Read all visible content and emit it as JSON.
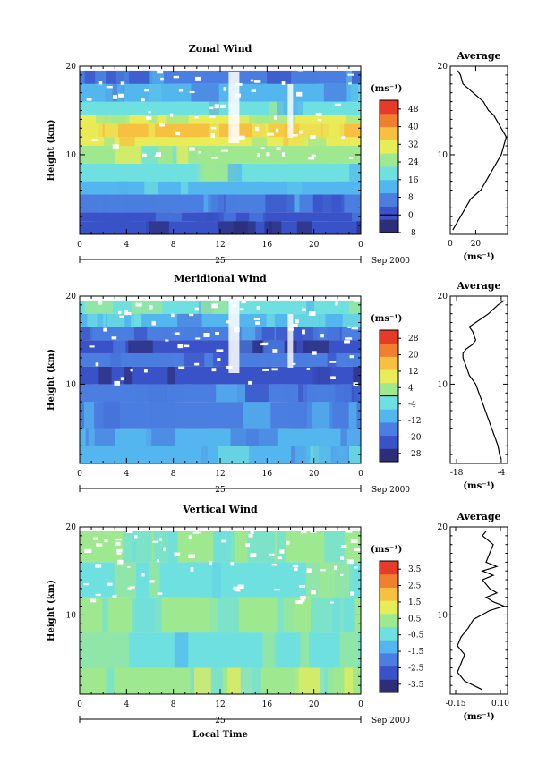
{
  "figure": {
    "date_label": "Sep 2000",
    "day_label": "25",
    "colors": {
      "white_gap": "#ffffff",
      "contour": "#000000"
    }
  },
  "chart_data": [
    {
      "type": "heatmap",
      "title": "Zonal Wind",
      "ylabel": "Height (km)",
      "xlabel": "",
      "x_ticks": [
        "0",
        "4",
        "8",
        "12",
        "16",
        "20",
        "0"
      ],
      "y_ticks": [
        "20",
        "10"
      ],
      "xlim": [
        0,
        24
      ],
      "ylim": [
        1,
        20
      ],
      "unit": "(ms⁻¹)",
      "colorbar": {
        "labels": [
          "48",
          "40",
          "32",
          "24",
          "16",
          "8",
          "0",
          "-8"
        ],
        "min": -8,
        "max": 52,
        "colors": [
          "#2e2e78",
          "#3a52c8",
          "#4a7ee0",
          "#54b6ee",
          "#6ee0e0",
          "#9ee890",
          "#e8ec58",
          "#f8c040",
          "#f08030",
          "#e83a28"
        ]
      },
      "bands": [
        {
          "y": [
            1,
            2.5
          ],
          "value": -2
        },
        {
          "y": [
            2.5,
            3.5
          ],
          "value": 2
        },
        {
          "y": [
            3.5,
            5.5
          ],
          "value": 6
        },
        {
          "y": [
            5.5,
            7
          ],
          "value": 14
        },
        {
          "y": [
            7,
            9
          ],
          "value": 20
        },
        {
          "y": [
            9,
            11
          ],
          "value": 26
        },
        {
          "y": [
            11,
            12
          ],
          "value": 30
        },
        {
          "y": [
            12,
            13.5
          ],
          "value": 34
        },
        {
          "y": [
            13.5,
            14.5
          ],
          "value": 28
        },
        {
          "y": [
            14.5,
            16
          ],
          "value": 20
        },
        {
          "y": [
            16,
            18
          ],
          "value": 12
        },
        {
          "y": [
            18,
            19.5
          ],
          "value": 6
        }
      ],
      "average_profile": {
        "title": "Average",
        "x_ticks": [
          "0",
          "20"
        ],
        "xlim": [
          0,
          45
        ],
        "x": [
          2,
          4,
          8,
          12,
          16,
          20,
          24,
          28,
          32,
          36,
          40,
          42,
          44,
          42,
          40,
          36,
          34,
          30,
          26,
          22,
          18,
          14,
          10,
          8,
          6
        ],
        "y": [
          1.5,
          2,
          3,
          4,
          5,
          5.5,
          6,
          7,
          8,
          9,
          10,
          11,
          12,
          12.5,
          13,
          14,
          14.5,
          15,
          16,
          16.5,
          17,
          17.5,
          18,
          19,
          19.5
        ]
      }
    },
    {
      "type": "heatmap",
      "title": "Meridional Wind",
      "ylabel": "Height (km)",
      "xlabel": "",
      "x_ticks": [
        "0",
        "4",
        "8",
        "12",
        "16",
        "20",
        "0"
      ],
      "y_ticks": [
        "20",
        "10"
      ],
      "xlim": [
        0,
        24
      ],
      "ylim": [
        1,
        20
      ],
      "unit": "(ms⁻¹)",
      "colorbar": {
        "labels": [
          "28",
          "20",
          "12",
          "4",
          "-4",
          "-12",
          "-20",
          "-28"
        ],
        "min": -32,
        "max": 32,
        "colors": [
          "#2e2e78",
          "#3a52c8",
          "#4a7ee0",
          "#54b6ee",
          "#6ee0e0",
          "#9ee890",
          "#e8ec58",
          "#f8c040",
          "#f08030",
          "#e83a28"
        ]
      },
      "bands": [
        {
          "y": [
            1,
            3
          ],
          "value": -10
        },
        {
          "y": [
            3,
            5
          ],
          "value": -12
        },
        {
          "y": [
            5,
            8
          ],
          "value": -14
        },
        {
          "y": [
            8,
            10
          ],
          "value": -18
        },
        {
          "y": [
            10,
            12
          ],
          "value": -24
        },
        {
          "y": [
            12,
            13.5
          ],
          "value": -18
        },
        {
          "y": [
            13.5,
            15
          ],
          "value": -24
        },
        {
          "y": [
            15,
            16.5
          ],
          "value": -16
        },
        {
          "y": [
            16.5,
            18
          ],
          "value": -8
        },
        {
          "y": [
            18,
            19.5
          ],
          "value": -2
        }
      ],
      "average_profile": {
        "title": "Average",
        "x_ticks": [
          "-18",
          "-4"
        ],
        "xlim": [
          -20,
          -2
        ],
        "x": [
          -4,
          -4.5,
          -5,
          -6,
          -7,
          -8,
          -9,
          -10,
          -11,
          -12,
          -13,
          -14,
          -15,
          -16,
          -16,
          -15,
          -13,
          -12,
          -13,
          -14,
          -12,
          -10,
          -8,
          -5,
          -3
        ],
        "y": [
          1.5,
          2,
          3,
          4,
          5,
          6,
          7,
          8,
          9,
          10,
          10.5,
          11,
          12,
          13,
          13.5,
          14,
          14.5,
          15,
          16,
          16.5,
          17,
          17.5,
          18,
          19,
          19.5
        ]
      }
    },
    {
      "type": "heatmap",
      "title": "Vertical Wind",
      "ylabel": "Height (km)",
      "xlabel": "Local Time",
      "x_ticks": [
        "0",
        "4",
        "8",
        "12",
        "16",
        "20",
        "0"
      ],
      "y_ticks": [
        "20",
        "10"
      ],
      "xlim": [
        0,
        24
      ],
      "ylim": [
        1,
        20
      ],
      "unit": "(ms⁻¹)",
      "colorbar": {
        "labels": [
          "3.5",
          "2.5",
          "1.5",
          "0.5",
          "-0.5",
          "-1.5",
          "-2.5",
          "-3.5"
        ],
        "min": -4,
        "max": 4,
        "colors": [
          "#2e2e78",
          "#3a52c8",
          "#4a7ee0",
          "#54b6ee",
          "#6ee0e0",
          "#9ee890",
          "#e8ec58",
          "#f8c040",
          "#f08030",
          "#e83a28"
        ]
      },
      "bands": [
        {
          "y": [
            1,
            4
          ],
          "value": 0.4
        },
        {
          "y": [
            4,
            8
          ],
          "value": -0.2
        },
        {
          "y": [
            8,
            12
          ],
          "value": 0.1
        },
        {
          "y": [
            12,
            16
          ],
          "value": -0.1
        },
        {
          "y": [
            16,
            19.5
          ],
          "value": 0.0
        }
      ],
      "average_profile": {
        "title": "Average",
        "x_ticks": [
          "-0.15",
          "0.10"
        ],
        "xlim": [
          -0.18,
          0.14
        ],
        "x": [
          0.0,
          -0.1,
          -0.14,
          -0.12,
          -0.1,
          -0.14,
          -0.12,
          -0.08,
          -0.05,
          0.04,
          0.12,
          0.06,
          0.02,
          0.08,
          0.04,
          0.0,
          0.06,
          0.0,
          0.08,
          0.02,
          0.04,
          0.06,
          0.0,
          0.02
        ],
        "y": [
          1.5,
          2.5,
          3.5,
          4.5,
          5.5,
          6.5,
          7.5,
          8.5,
          9.5,
          10.5,
          11,
          11.5,
          12,
          12.5,
          13,
          14,
          14.5,
          15,
          15.5,
          16,
          17,
          18,
          19,
          19.5
        ]
      }
    }
  ]
}
